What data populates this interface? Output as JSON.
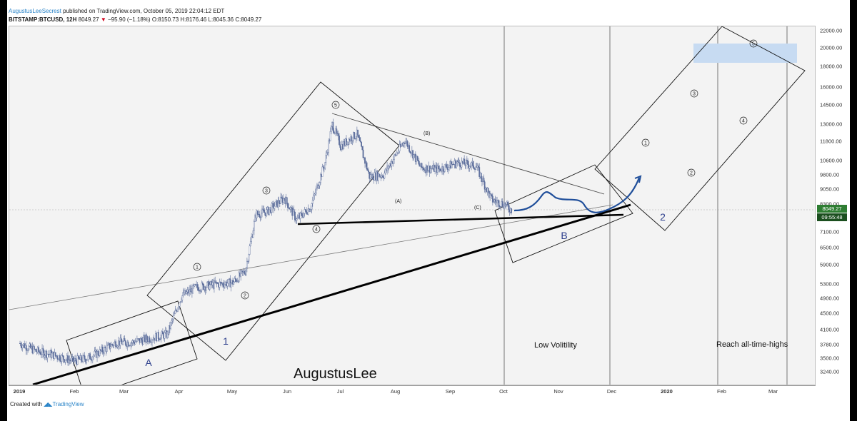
{
  "header": {
    "author": "AugustusLeeSecrest",
    "published": "published on TradingView.com, October 05, 2019 22:04:12 EDT",
    "symbol": "BITSTAMP:BTCUSD, 12H",
    "last": "8049.27",
    "change": "−95.90 (−1.18%)",
    "ohlc": "O:8150.73 H:8176.46 L:8045.36 C:8049.27"
  },
  "footer": {
    "created": "Created with",
    "brand": "TradingView"
  },
  "price_tag": {
    "price": "8049.27",
    "countdown": "09:55:48"
  },
  "colors": {
    "candle": "#5b6d9b",
    "curve": "#1f4e9a",
    "highlight": "#c7dbf2",
    "up_label": "#2e7d32"
  },
  "annotations": {
    "watermark": "AugustusLee",
    "low_vol": "Low Volitility",
    "ath": "Reach all-time-highs",
    "wave_a": "A",
    "wave_b": "B",
    "wave_1": "1",
    "wave_2": "2",
    "sub_a": "(A)",
    "sub_b": "(B)",
    "sub_c": "(C)",
    "circles": [
      "1",
      "2",
      "3",
      "4",
      "5"
    ]
  },
  "chart_data": {
    "type": "candlestick",
    "y_ticks": [
      "22000.00",
      "20000.00",
      "18000.00",
      "16000.00",
      "14500.00",
      "13000.00",
      "11800.00",
      "10600.00",
      "9800.00",
      "9050.00",
      "8300.00",
      "7100.00",
      "6500.00",
      "5900.00",
      "5300.00",
      "4900.00",
      "4500.00",
      "4100.00",
      "3780.00",
      "3500.00",
      "3240.00"
    ],
    "x_ticks": [
      "2019",
      "Feb",
      "Mar",
      "Apr",
      "May",
      "Jun",
      "Jul",
      "Aug",
      "Sep",
      "Oct",
      "Nov",
      "Dec",
      "2020",
      "Feb",
      "Mar"
    ],
    "series_close": [
      [
        "2019-01-01",
        3800
      ],
      [
        "2019-01-10",
        3640
      ],
      [
        "2019-01-20",
        3560
      ],
      [
        "2019-01-31",
        3440
      ],
      [
        "2019-02-08",
        3500
      ],
      [
        "2019-02-15",
        3620
      ],
      [
        "2019-02-24",
        3820
      ],
      [
        "2019-03-05",
        3820
      ],
      [
        "2019-03-15",
        3910
      ],
      [
        "2019-03-25",
        4000
      ],
      [
        "2019-04-02",
        4950
      ],
      [
        "2019-04-10",
        5200
      ],
      [
        "2019-04-22",
        5300
      ],
      [
        "2019-05-01",
        5350
      ],
      [
        "2019-05-08",
        5700
      ],
      [
        "2019-05-14",
        7850
      ],
      [
        "2019-05-20",
        7950
      ],
      [
        "2019-05-30",
        8600
      ],
      [
        "2019-06-06",
        7600
      ],
      [
        "2019-06-14",
        8200
      ],
      [
        "2019-06-22",
        10500
      ],
      [
        "2019-06-26",
        13000
      ],
      [
        "2019-07-01",
        11500
      ],
      [
        "2019-07-06",
        12000
      ],
      [
        "2019-07-10",
        12300
      ],
      [
        "2019-07-17",
        9700
      ],
      [
        "2019-07-25",
        9800
      ],
      [
        "2019-08-06",
        11900
      ],
      [
        "2019-08-15",
        10200
      ],
      [
        "2019-08-25",
        10100
      ],
      [
        "2019-09-05",
        10500
      ],
      [
        "2019-09-15",
        10300
      ],
      [
        "2019-09-24",
        8500
      ],
      [
        "2019-10-01",
        8300
      ],
      [
        "2019-10-05",
        8049.27
      ]
    ]
  }
}
